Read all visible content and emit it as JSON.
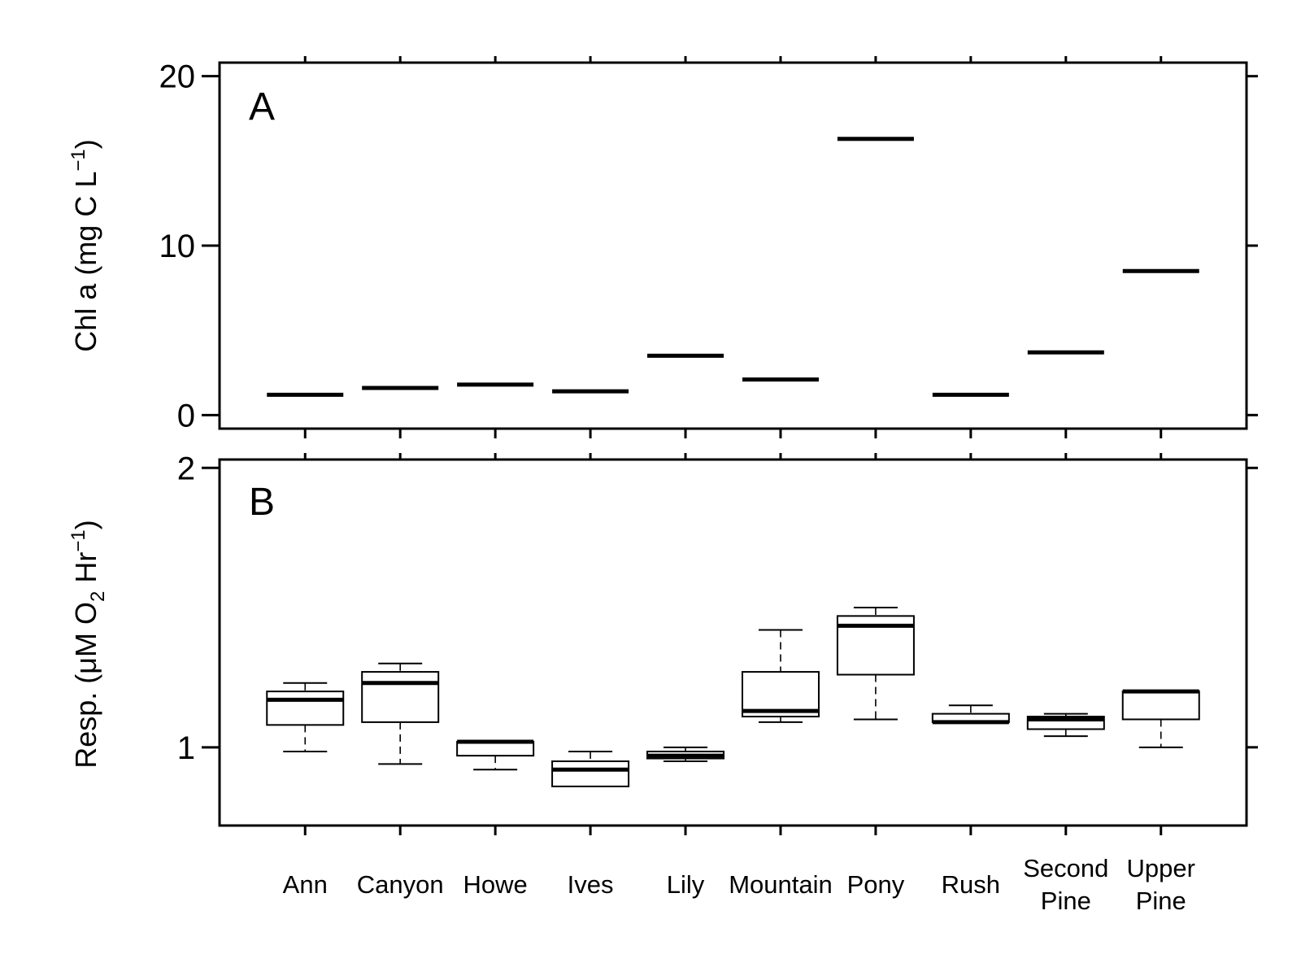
{
  "chart_data": [
    {
      "type": "box",
      "panel_label": "A",
      "ylabel": {
        "main": "Chl a (mg C L",
        "sup": "−1",
        "tail": ")"
      },
      "ylim": [
        -0.8,
        20.8
      ],
      "yticks": [
        0,
        10,
        20
      ],
      "tick_labels": [
        "0",
        "10",
        "20"
      ],
      "categories": [
        "Ann",
        "Canyon",
        "Howe",
        "Ives",
        "Lily",
        "Mountain",
        "Pony",
        "Rush",
        "Second Pine",
        "Upper Pine"
      ],
      "medians": [
        1.2,
        1.6,
        1.8,
        1.4,
        3.5,
        2.1,
        16.3,
        1.2,
        3.7,
        8.5
      ]
    },
    {
      "type": "box",
      "panel_label": "B",
      "ylabel": {
        "main": "Resp. (μM O",
        "sub": "2",
        "mid": " Hr",
        "sup": "−1",
        "tail": ")"
      },
      "ylim": [
        0.72,
        2.03
      ],
      "yticks": [
        1,
        2
      ],
      "tick_labels": [
        "1",
        "2"
      ],
      "categories": [
        "Ann",
        "Canyon",
        "Howe",
        "Ives",
        "Lily",
        "Mountain",
        "Pony",
        "Rush",
        "Second Pine",
        "Upper Pine"
      ],
      "boxes": [
        {
          "whisker_low": 0.985,
          "q1": 1.08,
          "median": 1.17,
          "q3": 1.2,
          "whisker_high": 1.23
        },
        {
          "whisker_low": 0.94,
          "q1": 1.09,
          "median": 1.23,
          "q3": 1.27,
          "whisker_high": 1.3
        },
        {
          "whisker_low": 0.92,
          "q1": 0.97,
          "median": 1.02,
          "q3": 1.02,
          "whisker_high": 1.02
        },
        {
          "whisker_low": 0.86,
          "q1": 0.86,
          "median": 0.92,
          "q3": 0.95,
          "whisker_high": 0.985
        },
        {
          "whisker_low": 0.95,
          "q1": 0.96,
          "median": 0.97,
          "q3": 0.985,
          "whisker_high": 1.0
        },
        {
          "whisker_low": 1.09,
          "q1": 1.11,
          "median": 1.13,
          "q3": 1.27,
          "whisker_high": 1.42
        },
        {
          "whisker_low": 1.1,
          "q1": 1.26,
          "median": 1.435,
          "q3": 1.47,
          "whisker_high": 1.5
        },
        {
          "whisker_low": 1.09,
          "q1": 1.09,
          "median": 1.09,
          "q3": 1.12,
          "whisker_high": 1.15
        },
        {
          "whisker_low": 1.04,
          "q1": 1.065,
          "median": 1.1,
          "q3": 1.11,
          "whisker_high": 1.12
        },
        {
          "whisker_low": 1.0,
          "q1": 1.1,
          "median": 1.2,
          "q3": 1.2,
          "whisker_high": 1.2
        }
      ]
    }
  ],
  "x_axis": {
    "labels": [
      [
        "Ann"
      ],
      [
        "Canyon"
      ],
      [
        "Howe"
      ],
      [
        "Ives"
      ],
      [
        "Lily"
      ],
      [
        "Mountain"
      ],
      [
        "Pony"
      ],
      [
        "Rush"
      ],
      [
        "Second",
        "Pine"
      ],
      [
        "Upper",
        "Pine"
      ]
    ]
  }
}
